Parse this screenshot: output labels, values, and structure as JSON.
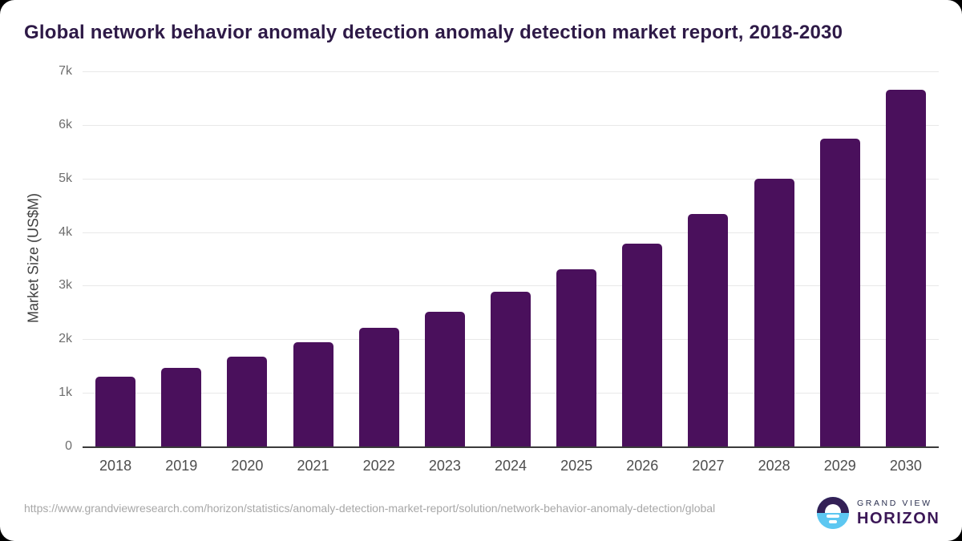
{
  "title": "Global network behavior anomaly detection anomaly detection market report, 2018-2030",
  "chart_data": {
    "type": "bar",
    "title": "Global network behavior anomaly detection anomaly detection market report, 2018-2030",
    "categories": [
      "2018",
      "2019",
      "2020",
      "2021",
      "2022",
      "2023",
      "2024",
      "2025",
      "2026",
      "2027",
      "2028",
      "2029",
      "2030"
    ],
    "values": [
      1300,
      1470,
      1680,
      1940,
      2210,
      2520,
      2890,
      3300,
      3790,
      4340,
      5000,
      5750,
      6660
    ],
    "xlabel": "",
    "ylabel": "Market Size (US$M)",
    "ylim": [
      0,
      7000
    ],
    "ytick_step": 1000,
    "ytick_labels": [
      "0",
      "1k",
      "2k",
      "3k",
      "4k",
      "5k",
      "6k",
      "7k"
    ],
    "grid": "horizontal",
    "legend": "none",
    "bar_color": "#4a105c"
  },
  "footer": {
    "source_url": "https://www.grandviewresearch.com/horizon/statistics/anomaly-detection-market-report/solution/network-behavior-anomaly-detection/global",
    "logo": {
      "line1": "GRAND VIEW",
      "line2": "HORIZON",
      "purple": "#332056",
      "blue": "#5dc7f1"
    }
  }
}
